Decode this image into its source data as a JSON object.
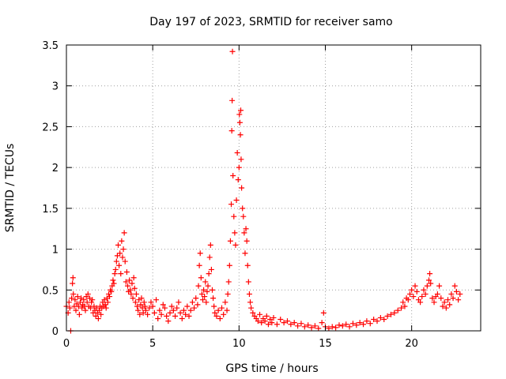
{
  "chart_data": {
    "type": "scatter",
    "title": "Day 197 of 2023, SRMTID for receiver samo",
    "xlabel": "GPS time / hours",
    "ylabel": "SRMTID / TECUs",
    "xlim": [
      0,
      24
    ],
    "ylim": [
      0,
      3.5
    ],
    "x_ticks": [
      0,
      5,
      10,
      15,
      20
    ],
    "x_tick_labels": [
      "0",
      "5",
      "10",
      "15",
      "20"
    ],
    "y_ticks": [
      0,
      0.5,
      1,
      1.5,
      2,
      2.5,
      3,
      3.5
    ],
    "y_tick_labels": [
      "0",
      "0.5",
      "1",
      "1.5",
      "2",
      "2.5",
      "3",
      "3.5"
    ],
    "grid": true,
    "marker": "plus",
    "series": [
      {
        "name": "SRMTID",
        "color": "#ff0000",
        "points": [
          [
            0.0,
            0.3
          ],
          [
            0.1,
            0.22
          ],
          [
            0.15,
            0.35
          ],
          [
            0.2,
            0.28
          ],
          [
            0.25,
            0.0
          ],
          [
            0.3,
            0.4
          ],
          [
            0.35,
            0.58
          ],
          [
            0.38,
            0.65
          ],
          [
            0.4,
            0.45
          ],
          [
            0.45,
            0.3
          ],
          [
            0.5,
            0.38
          ],
          [
            0.55,
            0.25
          ],
          [
            0.6,
            0.33
          ],
          [
            0.65,
            0.42
          ],
          [
            0.7,
            0.3
          ],
          [
            0.75,
            0.2
          ],
          [
            0.8,
            0.35
          ],
          [
            0.85,
            0.4
          ],
          [
            0.9,
            0.28
          ],
          [
            0.95,
            0.32
          ],
          [
            1.0,
            0.38
          ],
          [
            1.05,
            0.3
          ],
          [
            1.1,
            0.25
          ],
          [
            1.15,
            0.42
          ],
          [
            1.2,
            0.35
          ],
          [
            1.25,
            0.45
          ],
          [
            1.3,
            0.3
          ],
          [
            1.35,
            0.4
          ],
          [
            1.4,
            0.28
          ],
          [
            1.45,
            0.35
          ],
          [
            1.5,
            0.38
          ],
          [
            1.55,
            0.22
          ],
          [
            1.6,
            0.3
          ],
          [
            1.65,
            0.25
          ],
          [
            1.7,
            0.18
          ],
          [
            1.75,
            0.28
          ],
          [
            1.8,
            0.22
          ],
          [
            1.85,
            0.15
          ],
          [
            1.9,
            0.25
          ],
          [
            1.95,
            0.3
          ],
          [
            2.0,
            0.2
          ],
          [
            2.05,
            0.28
          ],
          [
            2.1,
            0.35
          ],
          [
            2.15,
            0.3
          ],
          [
            2.2,
            0.38
          ],
          [
            2.25,
            0.32
          ],
          [
            2.3,
            0.28
          ],
          [
            2.35,
            0.4
          ],
          [
            2.4,
            0.35
          ],
          [
            2.45,
            0.45
          ],
          [
            2.5,
            0.42
          ],
          [
            2.55,
            0.5
          ],
          [
            2.6,
            0.48
          ],
          [
            2.65,
            0.55
          ],
          [
            2.7,
            0.62
          ],
          [
            2.75,
            0.58
          ],
          [
            2.8,
            0.7
          ],
          [
            2.85,
            0.75
          ],
          [
            2.9,
            0.85
          ],
          [
            2.95,
            0.92
          ],
          [
            3.0,
            1.05
          ],
          [
            3.05,
            0.8
          ],
          [
            3.1,
            0.95
          ],
          [
            3.15,
            0.7
          ],
          [
            3.2,
            1.1
          ],
          [
            3.25,
            0.9
          ],
          [
            3.3,
            1.0
          ],
          [
            3.35,
            1.2
          ],
          [
            3.4,
            0.85
          ],
          [
            3.45,
            0.6
          ],
          [
            3.5,
            0.72
          ],
          [
            3.55,
            0.55
          ],
          [
            3.6,
            0.48
          ],
          [
            3.65,
            0.62
          ],
          [
            3.7,
            0.5
          ],
          [
            3.75,
            0.45
          ],
          [
            3.8,
            0.58
          ],
          [
            3.85,
            0.4
          ],
          [
            3.9,
            0.65
          ],
          [
            3.95,
            0.52
          ],
          [
            4.0,
            0.35
          ],
          [
            4.05,
            0.45
          ],
          [
            4.1,
            0.3
          ],
          [
            4.15,
            0.25
          ],
          [
            4.2,
            0.38
          ],
          [
            4.25,
            0.2
          ],
          [
            4.3,
            0.32
          ],
          [
            4.35,
            0.4
          ],
          [
            4.4,
            0.28
          ],
          [
            4.45,
            0.22
          ],
          [
            4.5,
            0.35
          ],
          [
            4.55,
            0.3
          ],
          [
            4.6,
            0.25
          ],
          [
            4.7,
            0.2
          ],
          [
            4.8,
            0.28
          ],
          [
            4.9,
            0.35
          ],
          [
            5.0,
            0.3
          ],
          [
            5.1,
            0.22
          ],
          [
            5.2,
            0.38
          ],
          [
            5.3,
            0.15
          ],
          [
            5.4,
            0.25
          ],
          [
            5.5,
            0.2
          ],
          [
            5.6,
            0.32
          ],
          [
            5.7,
            0.28
          ],
          [
            5.8,
            0.18
          ],
          [
            5.9,
            0.12
          ],
          [
            6.0,
            0.22
          ],
          [
            6.1,
            0.3
          ],
          [
            6.2,
            0.25
          ],
          [
            6.3,
            0.18
          ],
          [
            6.4,
            0.28
          ],
          [
            6.5,
            0.35
          ],
          [
            6.6,
            0.22
          ],
          [
            6.7,
            0.15
          ],
          [
            6.8,
            0.25
          ],
          [
            6.9,
            0.2
          ],
          [
            7.0,
            0.3
          ],
          [
            7.1,
            0.18
          ],
          [
            7.2,
            0.25
          ],
          [
            7.3,
            0.35
          ],
          [
            7.4,
            0.28
          ],
          [
            7.5,
            0.4
          ],
          [
            7.6,
            0.32
          ],
          [
            7.65,
            0.55
          ],
          [
            7.7,
            0.8
          ],
          [
            7.75,
            0.95
          ],
          [
            7.8,
            0.65
          ],
          [
            7.85,
            0.45
          ],
          [
            7.9,
            0.38
          ],
          [
            7.95,
            0.5
          ],
          [
            8.0,
            0.42
          ],
          [
            8.05,
            0.6
          ],
          [
            8.1,
            0.35
          ],
          [
            8.15,
            0.48
          ],
          [
            8.2,
            0.55
          ],
          [
            8.25,
            0.7
          ],
          [
            8.3,
            0.9
          ],
          [
            8.35,
            1.05
          ],
          [
            8.4,
            0.75
          ],
          [
            8.45,
            0.5
          ],
          [
            8.5,
            0.4
          ],
          [
            8.55,
            0.3
          ],
          [
            8.6,
            0.22
          ],
          [
            8.7,
            0.18
          ],
          [
            8.8,
            0.25
          ],
          [
            8.9,
            0.15
          ],
          [
            9.0,
            0.28
          ],
          [
            9.1,
            0.2
          ],
          [
            9.2,
            0.35
          ],
          [
            9.3,
            0.25
          ],
          [
            9.35,
            0.45
          ],
          [
            9.4,
            0.6
          ],
          [
            9.45,
            0.8
          ],
          [
            9.5,
            1.1
          ],
          [
            9.55,
            1.55
          ],
          [
            9.58,
            2.45
          ],
          [
            9.6,
            2.82
          ],
          [
            9.62,
            3.42
          ],
          [
            9.65,
            1.9
          ],
          [
            9.7,
            1.4
          ],
          [
            9.75,
            1.2
          ],
          [
            9.8,
            1.05
          ],
          [
            9.85,
            1.6
          ],
          [
            9.9,
            2.18
          ],
          [
            9.95,
            1.85
          ],
          [
            10.0,
            2.0
          ],
          [
            10.02,
            2.65
          ],
          [
            10.05,
            2.55
          ],
          [
            10.08,
            2.4
          ],
          [
            10.1,
            2.7
          ],
          [
            10.12,
            2.1
          ],
          [
            10.15,
            1.75
          ],
          [
            10.2,
            1.5
          ],
          [
            10.25,
            1.4
          ],
          [
            10.3,
            1.2
          ],
          [
            10.35,
            0.95
          ],
          [
            10.4,
            1.25
          ],
          [
            10.45,
            1.1
          ],
          [
            10.5,
            0.8
          ],
          [
            10.55,
            0.6
          ],
          [
            10.6,
            0.45
          ],
          [
            10.65,
            0.35
          ],
          [
            10.7,
            0.28
          ],
          [
            10.8,
            0.22
          ],
          [
            10.9,
            0.18
          ],
          [
            11.0,
            0.15
          ],
          [
            11.1,
            0.12
          ],
          [
            11.2,
            0.2
          ],
          [
            11.3,
            0.1
          ],
          [
            11.4,
            0.15
          ],
          [
            11.5,
            0.12
          ],
          [
            11.6,
            0.18
          ],
          [
            11.7,
            0.08
          ],
          [
            11.8,
            0.14
          ],
          [
            11.9,
            0.1
          ],
          [
            12.0,
            0.16
          ],
          [
            12.2,
            0.08
          ],
          [
            12.4,
            0.14
          ],
          [
            12.6,
            0.1
          ],
          [
            12.8,
            0.12
          ],
          [
            13.0,
            0.08
          ],
          [
            13.2,
            0.1
          ],
          [
            13.4,
            0.06
          ],
          [
            13.6,
            0.09
          ],
          [
            13.8,
            0.05
          ],
          [
            14.0,
            0.07
          ],
          [
            14.2,
            0.04
          ],
          [
            14.4,
            0.06
          ],
          [
            14.6,
            0.03
          ],
          [
            14.8,
            0.1
          ],
          [
            14.9,
            0.22
          ],
          [
            15.0,
            0.05
          ],
          [
            15.2,
            0.03
          ],
          [
            15.4,
            0.05
          ],
          [
            15.6,
            0.04
          ],
          [
            15.8,
            0.07
          ],
          [
            16.0,
            0.06
          ],
          [
            16.2,
            0.08
          ],
          [
            16.4,
            0.05
          ],
          [
            16.6,
            0.09
          ],
          [
            16.8,
            0.07
          ],
          [
            17.0,
            0.1
          ],
          [
            17.2,
            0.08
          ],
          [
            17.4,
            0.12
          ],
          [
            17.6,
            0.09
          ],
          [
            17.8,
            0.14
          ],
          [
            18.0,
            0.12
          ],
          [
            18.2,
            0.16
          ],
          [
            18.4,
            0.14
          ],
          [
            18.6,
            0.18
          ],
          [
            18.8,
            0.2
          ],
          [
            19.0,
            0.22
          ],
          [
            19.2,
            0.25
          ],
          [
            19.4,
            0.28
          ],
          [
            19.5,
            0.35
          ],
          [
            19.6,
            0.3
          ],
          [
            19.7,
            0.4
          ],
          [
            19.8,
            0.38
          ],
          [
            19.9,
            0.45
          ],
          [
            20.0,
            0.5
          ],
          [
            20.1,
            0.42
          ],
          [
            20.2,
            0.55
          ],
          [
            20.3,
            0.48
          ],
          [
            20.4,
            0.38
          ],
          [
            20.5,
            0.35
          ],
          [
            20.6,
            0.42
          ],
          [
            20.7,
            0.5
          ],
          [
            20.8,
            0.45
          ],
          [
            20.9,
            0.55
          ],
          [
            21.0,
            0.62
          ],
          [
            21.05,
            0.7
          ],
          [
            21.1,
            0.58
          ],
          [
            21.2,
            0.4
          ],
          [
            21.3,
            0.35
          ],
          [
            21.4,
            0.42
          ],
          [
            21.5,
            0.45
          ],
          [
            21.6,
            0.55
          ],
          [
            21.7,
            0.4
          ],
          [
            21.8,
            0.3
          ],
          [
            21.9,
            0.35
          ],
          [
            22.0,
            0.28
          ],
          [
            22.1,
            0.38
          ],
          [
            22.2,
            0.32
          ],
          [
            22.3,
            0.45
          ],
          [
            22.4,
            0.4
          ],
          [
            22.5,
            0.55
          ],
          [
            22.6,
            0.48
          ],
          [
            22.7,
            0.38
          ],
          [
            22.8,
            0.45
          ]
        ]
      }
    ]
  }
}
